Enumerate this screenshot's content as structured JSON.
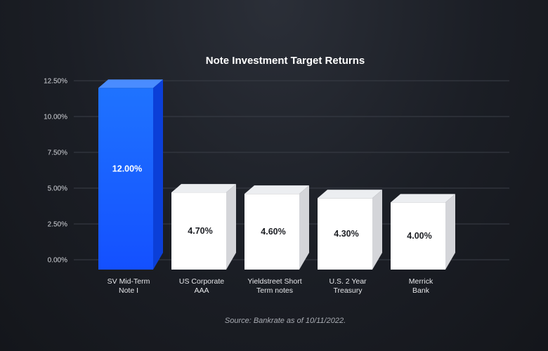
{
  "chart_data": {
    "type": "bar",
    "title": "Note Investment Target Returns",
    "categories": [
      [
        "SV Mid-Term",
        "Note I"
      ],
      [
        "US Corporate",
        "AAA"
      ],
      [
        "Yieldstreet Short",
        "Term notes"
      ],
      [
        "U.S. 2 Year",
        "Treasury"
      ],
      [
        "Merrick",
        "Bank"
      ]
    ],
    "values": [
      12.0,
      4.7,
      4.6,
      4.3,
      4.0
    ],
    "data_labels": [
      "12.00%",
      "4.70%",
      "4.60%",
      "4.30%",
      "4.00%"
    ],
    "yticks": [
      "0.00%",
      "2.50%",
      "5.00%",
      "7.50%",
      "10.00%",
      "12.50%"
    ],
    "ytick_values": [
      0,
      2.5,
      5,
      7.5,
      10,
      12.5
    ],
    "ylim": [
      0,
      12.5
    ],
    "xlabel": "",
    "ylabel": "",
    "grid": true,
    "highlight_index": 0,
    "colors": {
      "highlight_top": "#1f73ff",
      "highlight_bottom": "#1450ff",
      "highlight_side": "#0b3fd8",
      "highlight_cap": "#4a8cff",
      "bar_front": "#ffffff",
      "bar_side": "#d4d5d9",
      "bar_cap": "#eceef1",
      "label_dark": "#1d1f24",
      "label_light": "#ffffff"
    },
    "source": "Source: Bankrate as of 10/11/2022."
  }
}
